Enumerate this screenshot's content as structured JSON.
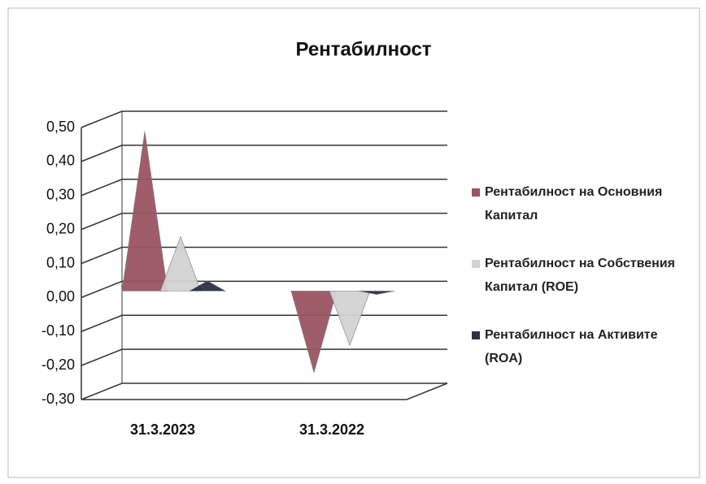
{
  "chart_data": {
    "type": "pyramid3d",
    "title": "Рентабилност",
    "categories": [
      "31.3.2023",
      "31.3.2022"
    ],
    "series": [
      {
        "name": "Рентабилност на Основния Капитал",
        "color": "#9a5561",
        "values": [
          0.47,
          -0.24
        ]
      },
      {
        "name": "Рентабилност на Собствения Капитал (ROE)",
        "color": "#d2d2d2",
        "values": [
          0.16,
          -0.16
        ]
      },
      {
        "name": "Рентабилност на Активите (ROA)",
        "color": "#2c3046",
        "values": [
          0.03,
          -0.01
        ]
      }
    ],
    "ylim": [
      -0.3,
      0.5
    ],
    "yticks": [
      {
        "value": -0.3,
        "label": "-0,30"
      },
      {
        "value": -0.2,
        "label": "-0,20"
      },
      {
        "value": -0.1,
        "label": "-0,10"
      },
      {
        "value": 0,
        "label": "0,00"
      },
      {
        "value": 0.1,
        "label": "0,10"
      },
      {
        "value": 0.2,
        "label": "0,20"
      },
      {
        "value": 0.3,
        "label": "0,30"
      },
      {
        "value": 0.4,
        "label": "0,40"
      },
      {
        "value": 0.5,
        "label": "0,50"
      }
    ],
    "grid": true,
    "legend": "right"
  }
}
